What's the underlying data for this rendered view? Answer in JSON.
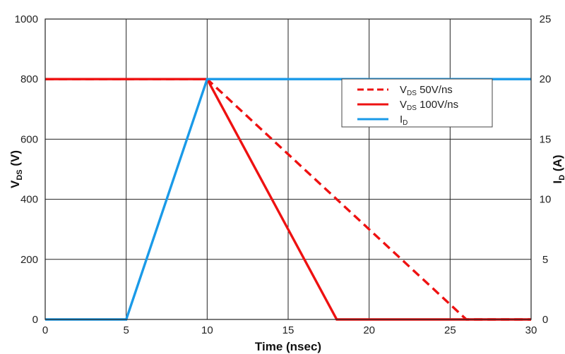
{
  "chart_data": {
    "type": "line",
    "xlabel": "Time (nsec)",
    "ylabel_left": {
      "main": "V",
      "sub": "DS",
      "rest": " (V)"
    },
    "ylabel_right": {
      "main": "I",
      "sub": "D",
      "rest": " (A)"
    },
    "xlim": [
      0,
      30
    ],
    "ylim_left": [
      0,
      1000
    ],
    "ylim_right": [
      0,
      25
    ],
    "x_ticks": [
      0,
      5,
      10,
      15,
      20,
      25,
      30
    ],
    "y_ticks_left": [
      0,
      200,
      400,
      600,
      800,
      1000
    ],
    "y_ticks_right": [
      0,
      5,
      10,
      15,
      20,
      25
    ],
    "grid": true,
    "legend_placement": "top-right",
    "series": [
      {
        "name": "V_DS 50V/ns",
        "label_main": "V",
        "label_sub": "DS",
        "label_rest": " 50V/ns",
        "axis": "left",
        "color": "#ee1111",
        "dash": true,
        "x": [
          0,
          10,
          26,
          30
        ],
        "y": [
          800,
          800,
          0,
          0
        ]
      },
      {
        "name": "V_DS 100V/ns",
        "label_main": "V",
        "label_sub": "DS",
        "label_rest": " 100V/ns",
        "axis": "left",
        "color": "#ee1111",
        "dash": false,
        "x": [
          0,
          10,
          18,
          30
        ],
        "y": [
          800,
          800,
          0,
          0
        ]
      },
      {
        "name": "I_D",
        "label_main": "I",
        "label_sub": "D",
        "label_rest": "",
        "axis": "right",
        "color": "#1a9ae8",
        "dash": false,
        "x": [
          0,
          5,
          10,
          30
        ],
        "y": [
          0,
          0,
          20,
          20
        ]
      }
    ]
  }
}
